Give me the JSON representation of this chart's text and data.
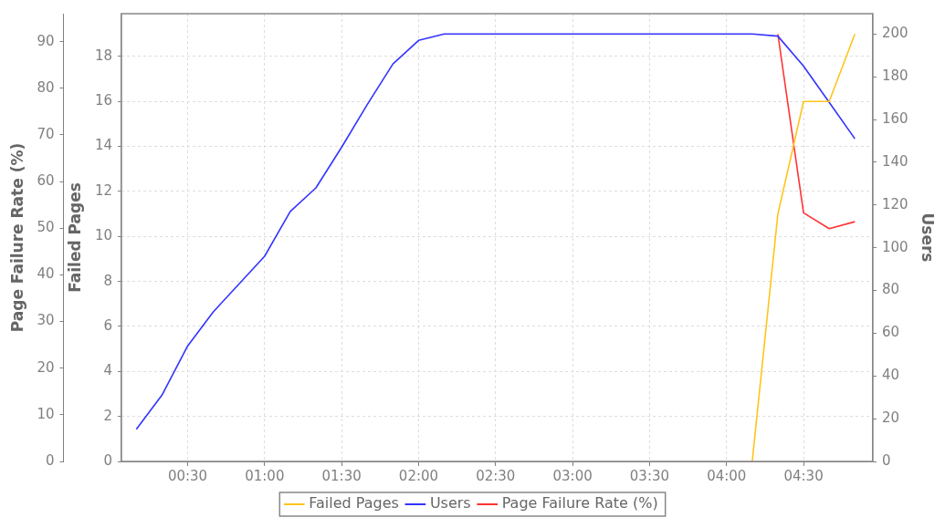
{
  "chart_data": {
    "type": "line",
    "xlabel": null,
    "ylabel": "Failed Pages",
    "y2label": "Users",
    "y3label": "Page Failure Rate (%)",
    "xlim": [
      0.07,
      4.95
    ],
    "xticks": [
      {
        "value": 0.5,
        "label": "00:30"
      },
      {
        "value": 1,
        "label": "01:00"
      },
      {
        "value": 1.5,
        "label": "01:30"
      },
      {
        "value": 2,
        "label": "02:00"
      },
      {
        "value": 2.5,
        "label": "02:30"
      },
      {
        "value": 3,
        "label": "03:00"
      },
      {
        "value": 3.5,
        "label": "03:30"
      },
      {
        "value": 4,
        "label": "04:00"
      },
      {
        "value": 4.5,
        "label": "04:30"
      }
    ],
    "ylim": [
      0,
      19.9
    ],
    "yticks": [
      0,
      2,
      4,
      6,
      8,
      10,
      12,
      14,
      16,
      18
    ],
    "y2lim": [
      0,
      209.5
    ],
    "y2ticks": [
      0,
      20,
      40,
      60,
      80,
      100,
      120,
      140,
      160,
      180,
      200
    ],
    "y3lim": [
      0,
      96
    ],
    "y3ticks": [
      0,
      10,
      20,
      30,
      40,
      50,
      60,
      70,
      80,
      90
    ],
    "grid": true,
    "legend": "bottom",
    "marker": "none",
    "line_style": "solid",
    "series": [
      {
        "name": "Failed Pages",
        "color": "#ffc41a",
        "axis": "y",
        "x": [
          4.1667,
          4.3333,
          4.5,
          4.6667,
          4.8333
        ],
        "values": [
          0,
          11,
          16,
          16,
          19
        ]
      },
      {
        "name": "Users",
        "color": "#3333ff",
        "axis": "y2",
        "x": [
          0.1667,
          0.3333,
          0.5,
          0.6667,
          0.8333,
          1,
          1.1667,
          1.3333,
          1.5,
          1.6667,
          1.8333,
          2,
          2.1667,
          2.3333,
          2.5,
          2.6667,
          2.8333,
          3,
          3.1667,
          3.3333,
          3.5,
          3.6667,
          3.8333,
          4,
          4.1667,
          4.3333,
          4.5,
          4.6667,
          4.8333
        ],
        "values": [
          15,
          31,
          54,
          70,
          83,
          96,
          117,
          128,
          147,
          167,
          186,
          197,
          200,
          200,
          200,
          200,
          200,
          200,
          200,
          200,
          200,
          200,
          200,
          200,
          200,
          199,
          185,
          168,
          151
        ]
      },
      {
        "name": "Page Failure Rate (%)",
        "color": "#ff3333",
        "axis": "y3",
        "x": [
          4.3333,
          4.5,
          4.6667,
          4.8333
        ],
        "values": [
          91.6,
          53.3,
          49.9,
          51.4
        ]
      }
    ]
  }
}
